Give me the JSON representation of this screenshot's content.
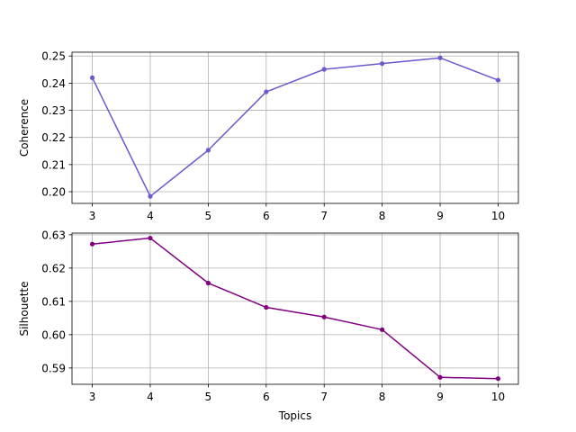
{
  "chart_data": [
    {
      "type": "line",
      "xlabel": "",
      "ylabel": "Coherence",
      "x": [
        3,
        4,
        5,
        6,
        7,
        8,
        9,
        10
      ],
      "xticks": [
        "3",
        "4",
        "5",
        "6",
        "7",
        "8",
        "9",
        "10"
      ],
      "xlim": [
        2.65,
        10.35
      ],
      "ylim": [
        0.1957,
        0.2514
      ],
      "yticks": [
        "0.20",
        "0.21",
        "0.22",
        "0.23",
        "0.24",
        "0.25"
      ],
      "grid": true,
      "color": "#6a5acd",
      "series": [
        {
          "values": [
            0.242,
            0.1983,
            0.2153,
            0.2368,
            0.2451,
            0.2472,
            0.2493,
            0.2411
          ]
        }
      ]
    },
    {
      "type": "line",
      "xlabel": "Topics",
      "ylabel": "Silhouette",
      "x": [
        3,
        4,
        5,
        6,
        7,
        8,
        9,
        10
      ],
      "xticks": [
        "3",
        "4",
        "5",
        "6",
        "7",
        "8",
        "9",
        "10"
      ],
      "xlim": [
        2.65,
        10.35
      ],
      "ylim": [
        0.5851,
        0.6305
      ],
      "yticks": [
        "0.59",
        "0.60",
        "0.61",
        "0.62",
        "0.63"
      ],
      "grid": true,
      "color": "#800080",
      "series": [
        {
          "values": [
            0.6272,
            0.629,
            0.6155,
            0.6082,
            0.6053,
            0.6015,
            0.5872,
            0.5868
          ]
        }
      ]
    }
  ]
}
